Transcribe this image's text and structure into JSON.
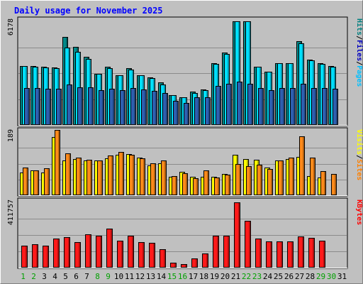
{
  "chart_data": {
    "type": "bar",
    "title": "Daily usage for November 2025",
    "categories": [
      "1",
      "2",
      "3",
      "4",
      "5",
      "6",
      "7",
      "8",
      "9",
      "10",
      "11",
      "12",
      "13",
      "14",
      "15",
      "16",
      "17",
      "18",
      "19",
      "20",
      "21",
      "22",
      "23",
      "24",
      "25",
      "26",
      "27",
      "28",
      "29",
      "30",
      "31"
    ],
    "weekend_days": [
      "1",
      "2",
      "8",
      "9",
      "15",
      "16",
      "22",
      "23",
      "29",
      "30"
    ],
    "colors": {
      "background": "#c0c0c0",
      "title": "#0000ff",
      "hits": "#008080",
      "files": "#00ffff",
      "pages": "#0000ff",
      "visits": "#ffff00",
      "sites": "#ff8000",
      "kbytes": "#ff0000",
      "weekday_label": "#000000",
      "weekend_label": "#00a000"
    },
    "panels": [
      {
        "id": "hits",
        "max_label": "6178",
        "ymax": 6178,
        "legend": [
          {
            "text": "Pages",
            "color": "#00c0ff"
          },
          {
            "text": "Files",
            "color": "#0000c0"
          },
          {
            "text": "Hits",
            "color": "#008080"
          }
        ],
        "series": [
          {
            "name": "Hits",
            "color": "#008a8a",
            "values": [
              3520,
              3500,
              3460,
              3420,
              5230,
              4660,
              4050,
              3060,
              3450,
              2980,
              3400,
              2960,
              2850,
              2530,
              1790,
              1660,
              1990,
              2100,
              3680,
              4320,
              6180,
              6180,
              3490,
              3190,
              3700,
              3690,
              4990,
              3890,
              3680,
              3500,
              0
            ]
          },
          {
            "name": "Files",
            "color": "#00e0ff",
            "values": [
              3500,
              3460,
              3440,
              3400,
              4620,
              4360,
              3950,
              3040,
              3380,
              2960,
              3300,
              2950,
              2780,
              2430,
              1760,
              1660,
              1900,
              2070,
              3660,
              4220,
              6160,
              6180,
              3460,
              3190,
              3700,
              3690,
              4860,
              3850,
              3640,
              3460,
              0
            ]
          },
          {
            "name": "Pages",
            "color": "#2e5fb0",
            "values": [
              2220,
              2180,
              2140,
              2140,
              2430,
              2260,
              2230,
              2080,
              2160,
              2090,
              2200,
              2120,
              2030,
              1900,
              1450,
              1320,
              1640,
              1650,
              2340,
              2460,
              2580,
              2470,
              2190,
              2080,
              2220,
              2210,
              2470,
              2220,
              2180,
              2160,
              0
            ]
          }
        ]
      },
      {
        "id": "visits",
        "max_label": "189",
        "ymax": 189,
        "legend": [
          {
            "text": "Sites",
            "color": "#ff8000"
          },
          {
            "text": "Visits",
            "color": "#ffff00"
          }
        ],
        "series": [
          {
            "name": "Visits",
            "color": "#ffff00",
            "values": [
              68,
              75,
              68,
              175,
              103,
              108,
              104,
              105,
              111,
              120,
              124,
              113,
              89,
              96,
              55,
              70,
              56,
              55,
              56,
              64,
              122,
              108,
              107,
              82,
              104,
              108,
              115,
              57,
              54,
              0,
              0
            ]
          },
          {
            "name": "Sites",
            "color": "#ff8a1a",
            "values": [
              83,
              75,
              80,
              195,
              125,
              112,
              107,
              104,
              118,
              130,
              122,
              111,
              95,
              105,
              57,
              66,
              50,
              74,
              54,
              62,
              93,
              88,
              91,
              78,
              104,
              112,
              176,
              113,
              72,
              64,
              0
            ]
          }
        ]
      },
      {
        "id": "kbytes",
        "max_label": "411757",
        "ymax": 411757,
        "legend": [
          {
            "text": "KBytes",
            "color": "#ff0000"
          }
        ],
        "series": [
          {
            "name": "KBytes",
            "color": "#ff1a1a",
            "values": [
              137000,
              146000,
              137000,
              184000,
              193000,
              161000,
              210000,
              201000,
              244000,
              172000,
              201000,
              160000,
              156000,
              115000,
              30000,
              24000,
              59000,
              91000,
              201000,
              201000,
              411757,
              297000,
              184000,
              167000,
              167000,
              165000,
              197000,
              188000,
              169000,
              0,
              0
            ]
          }
        ]
      }
    ]
  }
}
